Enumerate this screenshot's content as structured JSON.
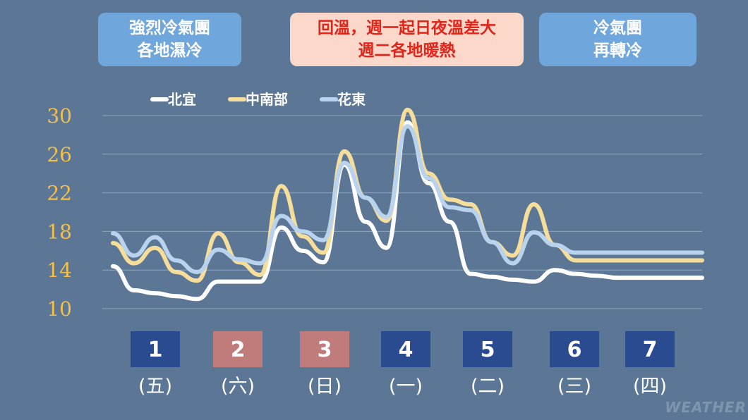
{
  "banners": [
    {
      "line1": "強烈冷氣團",
      "line2": "各地濕冷",
      "style": "blue"
    },
    {
      "line1": "回溫，週一起日夜溫差大",
      "line2": "週二各地暖熱",
      "style": "pink"
    },
    {
      "line1": "冷氣團",
      "line2": "再轉冷",
      "style": "blue"
    }
  ],
  "watermark": "WEATHER",
  "colors": {
    "background": "#5b7795",
    "north": "#ffffff",
    "central_south": "#f6dd9a",
    "east": "#b9d2ee",
    "box_blue": "#2a4b8f",
    "box_pink": "#c07b7b",
    "tick": "#f5c04a"
  },
  "chart_data": {
    "type": "line",
    "title": "",
    "xlabel": "",
    "ylabel": "",
    "ylim": [
      10,
      30
    ],
    "yticks": [
      10,
      14,
      18,
      22,
      26,
      30
    ],
    "grid": true,
    "legend_position": "top",
    "days": [
      {
        "num": "1",
        "weekday": "(五)",
        "highlight": "blue"
      },
      {
        "num": "2",
        "weekday": "(六)",
        "highlight": "pink"
      },
      {
        "num": "3",
        "weekday": "(日)",
        "highlight": "pink"
      },
      {
        "num": "4",
        "weekday": "(一)",
        "highlight": "blue"
      },
      {
        "num": "5",
        "weekday": "(二)",
        "highlight": "blue"
      },
      {
        "num": "6",
        "weekday": "(三)",
        "highlight": "blue"
      },
      {
        "num": "7",
        "weekday": "(四)",
        "highlight": "blue"
      }
    ],
    "x": [
      0.0,
      0.25,
      0.5,
      0.75,
      1.0,
      1.25,
      1.5,
      1.75,
      2.0,
      2.25,
      2.5,
      2.75,
      3.0,
      3.25,
      3.5,
      3.75,
      4.0,
      4.25,
      4.5,
      4.75,
      5.0,
      5.25,
      5.5,
      5.75,
      6.0,
      6.25,
      6.5,
      6.75,
      7.0
    ],
    "series": [
      {
        "name": "北宜",
        "color": "#ffffff",
        "values": [
          14.4,
          11.9,
          11.6,
          11.3,
          11.0,
          12.8,
          12.8,
          12.8,
          18.4,
          16.0,
          14.8,
          24.9,
          19.0,
          16.3,
          29.3,
          23.0,
          19.0,
          13.6,
          13.3,
          13.0,
          12.8,
          14.0,
          13.6,
          13.4,
          13.2,
          13.2,
          13.2,
          13.2,
          13.2
        ]
      },
      {
        "name": "中南部",
        "color": "#f6dd9a",
        "values": [
          16.8,
          14.7,
          16.3,
          13.8,
          12.9,
          17.8,
          14.8,
          13.5,
          22.7,
          17.5,
          15.8,
          26.3,
          21.5,
          19.1,
          30.6,
          24.0,
          21.3,
          20.8,
          16.9,
          15.5,
          20.8,
          16.6,
          15.0,
          15.0,
          15.0,
          15.0,
          15.0,
          15.0,
          15.0
        ]
      },
      {
        "name": "花東",
        "color": "#b9d2ee",
        "values": [
          17.8,
          15.5,
          17.4,
          15.0,
          13.8,
          16.1,
          15.1,
          14.7,
          19.6,
          18.0,
          17.1,
          25.1,
          21.5,
          19.5,
          28.9,
          23.5,
          20.5,
          20.2,
          16.9,
          14.7,
          17.9,
          16.6,
          15.8,
          15.8,
          15.8,
          15.8,
          15.8,
          15.8,
          15.8
        ]
      }
    ]
  }
}
